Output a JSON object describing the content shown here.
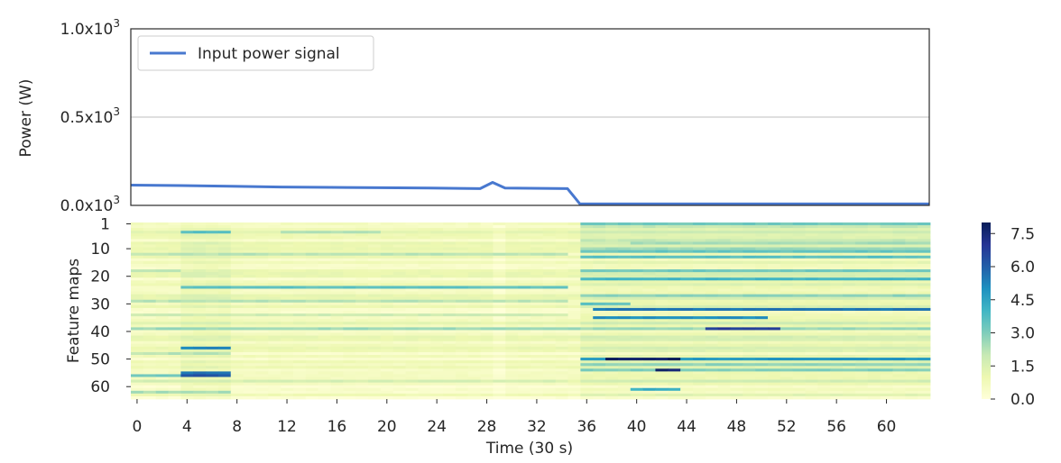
{
  "chart_data": [
    {
      "type": "line",
      "ylabel": "Power (W)",
      "ytick_labels": [
        {
          "value": 0,
          "base": "0.0x10",
          "exp": "3"
        },
        {
          "value": 500,
          "base": "0.5x10",
          "exp": "3"
        },
        {
          "value": 1000,
          "base": "1.0x10",
          "exp": "3"
        }
      ],
      "ylim": [
        0,
        1000
      ],
      "xlim": [
        0,
        64
      ],
      "grid": "horizontal",
      "legend_position": "top-left",
      "series": [
        {
          "name": "Input power signal",
          "color": "#4878cf",
          "x": [
            0,
            4,
            8,
            12,
            16,
            20,
            24,
            28,
            29,
            30,
            32,
            35,
            36,
            40,
            44,
            48,
            52,
            56,
            60,
            64
          ],
          "y": [
            115,
            112,
            108,
            104,
            102,
            100,
            98,
            95,
            130,
            98,
            97,
            95,
            8,
            8,
            8,
            8,
            8,
            8,
            8,
            8
          ]
        }
      ]
    },
    {
      "type": "heatmap",
      "xlabel": "Time (30 s)",
      "ylabel": "Feature maps",
      "x_ticks": [
        "0",
        "4",
        "8",
        "12",
        "16",
        "20",
        "24",
        "28",
        "32",
        "36",
        "40",
        "44",
        "48",
        "52",
        "56",
        "60"
      ],
      "y_ticks": [
        "1",
        "10",
        "20",
        "30",
        "40",
        "50",
        "60"
      ],
      "n_cols": 64,
      "n_rows": 64,
      "colormap": "YlGnBu",
      "colorbar": {
        "ticks": [
          "0.0",
          "1.5",
          "3.0",
          "4.5",
          "6.0",
          "7.5"
        ],
        "range": [
          0,
          8
        ]
      },
      "strong_features": [
        {
          "row": 1,
          "t": [
            0,
            35
          ],
          "value": 0.6
        },
        {
          "row": 1,
          "t": [
            36,
            64
          ],
          "value": 3.2
        },
        {
          "row": 2,
          "t": [
            36,
            64
          ],
          "value": 2.0
        },
        {
          "row": 4,
          "t": [
            4,
            8
          ],
          "value": 3.6
        },
        {
          "row": 4,
          "t": [
            12,
            20
          ],
          "value": 2.4
        },
        {
          "row": 7,
          "t": [
            36,
            64
          ],
          "value": 2.0
        },
        {
          "row": 8,
          "t": [
            40,
            64
          ],
          "value": 2.5
        },
        {
          "row": 10,
          "t": [
            36,
            64
          ],
          "value": 2.6
        },
        {
          "row": 11,
          "t": [
            36,
            64
          ],
          "value": 3.4
        },
        {
          "row": 12,
          "t": [
            0,
            35
          ],
          "value": 2.2
        },
        {
          "row": 13,
          "t": [
            36,
            64
          ],
          "value": 3.6
        },
        {
          "row": 18,
          "t": [
            0,
            4
          ],
          "value": 2.0
        },
        {
          "row": 18,
          "t": [
            36,
            64
          ],
          "value": 3.2
        },
        {
          "row": 21,
          "t": [
            36,
            64
          ],
          "value": 4.0
        },
        {
          "row": 24,
          "t": [
            4,
            35
          ],
          "value": 3.5
        },
        {
          "row": 27,
          "t": [
            36,
            64
          ],
          "value": 2.8
        },
        {
          "row": 29,
          "t": [
            0,
            35
          ],
          "value": 2.2
        },
        {
          "row": 30,
          "t": [
            36,
            40
          ],
          "value": 3.5
        },
        {
          "row": 32,
          "t": [
            37,
            64
          ],
          "value": 5.5
        },
        {
          "row": 34,
          "t": [
            0,
            35
          ],
          "value": 1.8
        },
        {
          "row": 35,
          "t": [
            37,
            51
          ],
          "value": 5.0
        },
        {
          "row": 39,
          "t": [
            0,
            64
          ],
          "value": 2.6
        },
        {
          "row": 39,
          "t": [
            46,
            52
          ],
          "value": 6.8
        },
        {
          "row": 46,
          "t": [
            4,
            8
          ],
          "value": 5.2
        },
        {
          "row": 48,
          "t": [
            0,
            8
          ],
          "value": 2.2
        },
        {
          "row": 50,
          "t": [
            36,
            64
          ],
          "value": 4.8
        },
        {
          "row": 50,
          "t": [
            38,
            44
          ],
          "value": 7.8
        },
        {
          "row": 52,
          "t": [
            36,
            64
          ],
          "value": 2.8
        },
        {
          "row": 54,
          "t": [
            36,
            64
          ],
          "value": 3.0
        },
        {
          "row": 54,
          "t": [
            42,
            44
          ],
          "value": 7.6
        },
        {
          "row": 55,
          "t": [
            4,
            8
          ],
          "value": 5.6
        },
        {
          "row": 56,
          "t": [
            4,
            8
          ],
          "value": 6.2
        },
        {
          "row": 56,
          "t": [
            0,
            4
          ],
          "value": 3.2
        },
        {
          "row": 58,
          "t": [
            0,
            35
          ],
          "value": 1.6
        },
        {
          "row": 61,
          "t": [
            40,
            44
          ],
          "value": 4.2
        },
        {
          "row": 62,
          "t": [
            0,
            8
          ],
          "value": 2.4
        }
      ]
    }
  ]
}
